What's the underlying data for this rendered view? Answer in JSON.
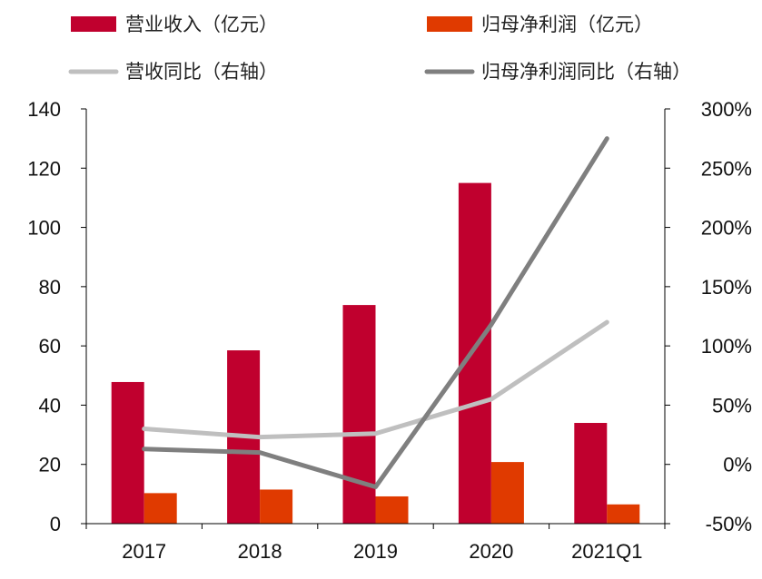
{
  "chart_data": {
    "type": "bar",
    "categories": [
      "2017",
      "2018",
      "2019",
      "2020",
      "2021Q1"
    ],
    "series": [
      {
        "name": "营业收入（亿元）",
        "type": "bar",
        "axis": "left",
        "color": "#C0002E",
        "values": [
          47.8,
          58.5,
          73.8,
          115.0,
          34.0
        ]
      },
      {
        "name": "归母净利润（亿元）",
        "type": "bar",
        "axis": "left",
        "color": "#E03A00",
        "values": [
          10.3,
          11.5,
          9.2,
          20.8,
          6.5
        ]
      },
      {
        "name": "营收同比（右轴）",
        "type": "line",
        "axis": "right",
        "color": "#BFBFBF",
        "values": [
          30,
          23,
          26,
          55,
          120
        ]
      },
      {
        "name": "归母净利润同比（右轴）",
        "type": "line",
        "axis": "right",
        "color": "#7F7F7F",
        "values": [
          13,
          10,
          -19,
          118,
          275
        ]
      }
    ],
    "y_left": {
      "min": 0,
      "max": 140,
      "step": 20,
      "tick_labels": [
        "0",
        "20",
        "40",
        "60",
        "80",
        "100",
        "120",
        "140"
      ]
    },
    "y_right": {
      "min": -50,
      "max": 300,
      "step": 50,
      "tick_labels": [
        "-50%",
        "0%",
        "50%",
        "100%",
        "150%",
        "200%",
        "250%",
        "300%"
      ]
    },
    "legend": "top",
    "grid": false,
    "title": "",
    "xlabel": "",
    "ylabel": ""
  }
}
